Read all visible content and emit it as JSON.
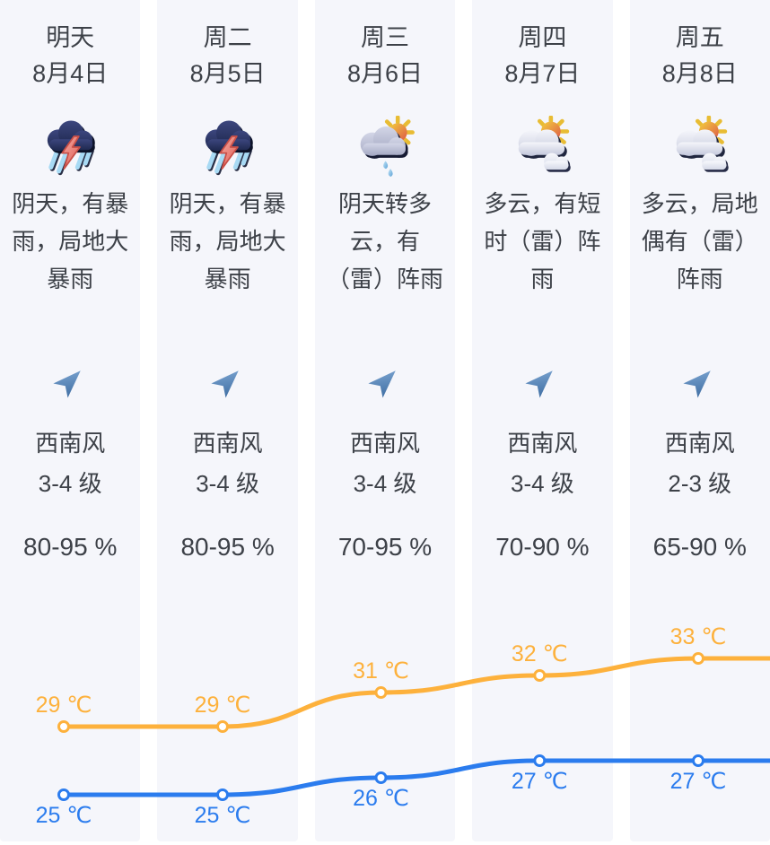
{
  "columns": [
    {
      "day": "明天",
      "date": "8月4日",
      "icon": "thunderstorm-heavy-rain",
      "desc": "阴天，有暴\n雨，局地大\n暴雨",
      "wind_icon": "wind-direction-arrow",
      "wind_dir": "西南风",
      "wind_level": "3-4 级",
      "humidity": "80-95 %"
    },
    {
      "day": "周二",
      "date": "8月5日",
      "icon": "thunderstorm-heavy-rain",
      "desc": "阴天，有暴\n雨，局地大\n暴雨",
      "wind_icon": "wind-direction-arrow",
      "wind_dir": "西南风",
      "wind_level": "3-4 级",
      "humidity": "80-95 %"
    },
    {
      "day": "周三",
      "date": "8月6日",
      "icon": "overcast-to-cloudy-shower",
      "desc": "阴天转多\n云，有\n（雷）阵雨",
      "wind_icon": "wind-direction-arrow",
      "wind_dir": "西南风",
      "wind_level": "3-4 级",
      "humidity": "70-95 %"
    },
    {
      "day": "周四",
      "date": "8月7日",
      "icon": "partly-cloudy",
      "desc": "多云，有短\n时（雷）阵\n雨",
      "wind_icon": "wind-direction-arrow",
      "wind_dir": "西南风",
      "wind_level": "3-4 级",
      "humidity": "70-90 %"
    },
    {
      "day": "周五",
      "date": "8月8日",
      "icon": "partly-cloudy",
      "desc": "多云，局地\n偶有（雷）\n阵雨",
      "wind_icon": "wind-direction-arrow",
      "wind_dir": "西南风",
      "wind_level": "2-3 级",
      "humidity": "65-90 %"
    }
  ],
  "chart_data": {
    "type": "line",
    "x": [
      "8月4日",
      "8月5日",
      "8月6日",
      "8月7日",
      "8月8日"
    ],
    "series": [
      {
        "name": "high-temperature",
        "color": "#fdb13c",
        "values": [
          29,
          29,
          31,
          32,
          33
        ]
      },
      {
        "name": "low-temperature",
        "color": "#2b7cee",
        "values": [
          25,
          25,
          26,
          27,
          27
        ]
      }
    ],
    "unit": "℃",
    "label_suffix": " ℃",
    "ylim": [
      24,
      35
    ],
    "grid": false,
    "legend": "none",
    "marker": "open-circle",
    "smooth": true
  },
  "colors": {
    "column_bg": "#f5f6fb",
    "page_bg": "#ffffff",
    "text": "#3d4148",
    "high_line": "#fdb13c",
    "low_line": "#2b7cee",
    "wind_arrow": "#4f81b4"
  }
}
